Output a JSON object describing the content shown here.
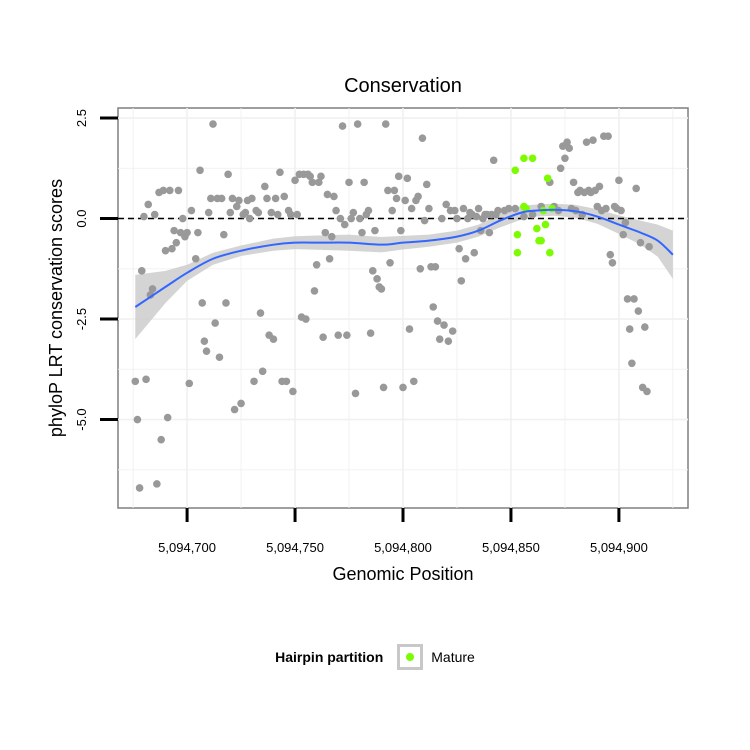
{
  "chart_data": {
    "type": "scatter",
    "title": "Conservation",
    "xlabel": "Genomic Position",
    "ylabel": "phyloP LRT conservation scores",
    "xlim": [
      5094668,
      5094932
    ],
    "ylim": [
      -7.2,
      2.75
    ],
    "x_ticks": [
      5094700,
      5094750,
      5094800,
      5094850,
      5094900
    ],
    "x_tick_labels": [
      "5,094,700",
      "5,094,750",
      "5,094,800",
      "5,094,850",
      "5,094,900"
    ],
    "y_ticks": [
      2.5,
      0.0,
      -2.5,
      -5.0
    ],
    "y_tick_labels": [
      "2.5",
      "0.0",
      "-2.5",
      "-5.0"
    ],
    "hline": {
      "y": 0,
      "style": "dashed"
    },
    "grid": true,
    "legend": {
      "title": "Hairpin partition",
      "position": "bottom",
      "entries": [
        {
          "label": "Mature",
          "color": "#7cfc00"
        }
      ]
    },
    "colors": {
      "points": "#999999",
      "highlight": "#7cfc00",
      "smooth": "#3366ff",
      "band": "#cccccc"
    },
    "smooth_x": [
      5094676,
      5094690,
      5094700,
      5094712,
      5094725,
      5094740,
      5094750,
      5094762,
      5094775,
      5094790,
      5094800,
      5094812,
      5094825,
      5094835,
      5094845,
      5094855,
      5094862,
      5094870,
      5094880,
      5094890,
      5094900,
      5094910,
      5094918,
      5094925
    ],
    "smooth_y": [
      -2.2,
      -1.7,
      -1.35,
      -1.0,
      -0.8,
      -0.65,
      -0.6,
      -0.6,
      -0.6,
      -0.65,
      -0.6,
      -0.55,
      -0.45,
      -0.3,
      -0.05,
      0.15,
      0.2,
      0.22,
      0.18,
      0.05,
      -0.15,
      -0.35,
      -0.55,
      -0.9
    ],
    "band_low": [
      -3.0,
      -2.1,
      -1.55,
      -1.15,
      -0.93,
      -0.8,
      -0.76,
      -0.78,
      -0.8,
      -0.84,
      -0.77,
      -0.7,
      -0.6,
      -0.45,
      -0.22,
      -0.02,
      0.05,
      0.07,
      0.02,
      -0.13,
      -0.38,
      -0.65,
      -0.95,
      -1.5
    ],
    "band_high": [
      -1.4,
      -1.3,
      -1.15,
      -0.85,
      -0.67,
      -0.5,
      -0.44,
      -0.42,
      -0.4,
      -0.46,
      -0.43,
      -0.4,
      -0.3,
      -0.15,
      0.12,
      0.32,
      0.35,
      0.37,
      0.34,
      0.23,
      0.08,
      -0.05,
      -0.15,
      -0.3
    ],
    "series": [
      {
        "values": [
          [
            5094676,
            -4.05
          ],
          [
            5094677,
            -5.0
          ],
          [
            5094678,
            -6.7
          ],
          [
            5094679,
            -1.3
          ],
          [
            5094680,
            0.05
          ],
          [
            5094681,
            -4.0
          ],
          [
            5094682,
            0.35
          ],
          [
            5094683,
            -1.9
          ],
          [
            5094684,
            -1.75
          ],
          [
            5094685,
            0.1
          ],
          [
            5094686,
            -6.6
          ],
          [
            5094687,
            0.65
          ],
          [
            5094688,
            -5.5
          ],
          [
            5094689,
            0.7
          ],
          [
            5094690,
            -0.8
          ],
          [
            5094691,
            -4.95
          ],
          [
            5094692,
            0.7
          ],
          [
            5094693,
            -0.75
          ],
          [
            5094694,
            -0.3
          ],
          [
            5094695,
            -0.6
          ],
          [
            5094696,
            0.7
          ],
          [
            5094697,
            -0.35
          ],
          [
            5094698,
            0.0
          ],
          [
            5094699,
            -0.45
          ],
          [
            5094700,
            -0.35
          ],
          [
            5094701,
            -4.1
          ],
          [
            5094702,
            0.2
          ],
          [
            5094704,
            -1.0
          ],
          [
            5094705,
            -0.35
          ],
          [
            5094706,
            1.2
          ],
          [
            5094707,
            -2.1
          ],
          [
            5094708,
            -3.05
          ],
          [
            5094709,
            -3.3
          ],
          [
            5094710,
            0.15
          ],
          [
            5094711,
            0.5
          ],
          [
            5094712,
            2.35
          ],
          [
            5094713,
            -2.6
          ],
          [
            5094714,
            0.5
          ],
          [
            5094715,
            -3.45
          ],
          [
            5094716,
            0.5
          ],
          [
            5094717,
            -0.4
          ],
          [
            5094718,
            -2.1
          ],
          [
            5094719,
            1.1
          ],
          [
            5094720,
            0.15
          ],
          [
            5094721,
            0.5
          ],
          [
            5094722,
            -4.75
          ],
          [
            5094723,
            0.3
          ],
          [
            5094724,
            0.45
          ],
          [
            5094725,
            -4.6
          ],
          [
            5094726,
            0.1
          ],
          [
            5094727,
            0.15
          ],
          [
            5094728,
            0.45
          ],
          [
            5094729,
            0.0
          ],
          [
            5094730,
            0.5
          ],
          [
            5094731,
            -4.05
          ],
          [
            5094732,
            0.2
          ],
          [
            5094733,
            0.15
          ],
          [
            5094734,
            -2.35
          ],
          [
            5094735,
            -3.8
          ],
          [
            5094736,
            0.8
          ],
          [
            5094737,
            0.5
          ],
          [
            5094738,
            -2.9
          ],
          [
            5094739,
            0.15
          ],
          [
            5094740,
            -3.0
          ],
          [
            5094741,
            0.5
          ],
          [
            5094742,
            0.1
          ],
          [
            5094743,
            1.15
          ],
          [
            5094744,
            -4.05
          ],
          [
            5094745,
            0.55
          ],
          [
            5094746,
            -4.05
          ],
          [
            5094747,
            0.2
          ],
          [
            5094748,
            0.1
          ],
          [
            5094749,
            -4.3
          ],
          [
            5094750,
            0.95
          ],
          [
            5094751,
            0.1
          ],
          [
            5094752,
            1.1
          ],
          [
            5094753,
            -2.45
          ],
          [
            5094754,
            1.1
          ],
          [
            5094755,
            -2.5
          ],
          [
            5094756,
            1.1
          ],
          [
            5094757,
            1.05
          ],
          [
            5094758,
            0.9
          ],
          [
            5094759,
            -1.8
          ],
          [
            5094760,
            -1.15
          ],
          [
            5094761,
            0.9
          ],
          [
            5094762,
            1.05
          ],
          [
            5094763,
            -2.95
          ],
          [
            5094764,
            -0.35
          ],
          [
            5094765,
            0.6
          ],
          [
            5094766,
            -1.0
          ],
          [
            5094767,
            -0.45
          ],
          [
            5094768,
            0.55
          ],
          [
            5094769,
            0.2
          ],
          [
            5094770,
            -2.9
          ],
          [
            5094771,
            0.0
          ],
          [
            5094772,
            2.3
          ],
          [
            5094773,
            -0.15
          ],
          [
            5094774,
            -2.9
          ],
          [
            5094775,
            0.9
          ],
          [
            5094776,
            0.0
          ],
          [
            5094777,
            0.15
          ],
          [
            5094778,
            -4.35
          ],
          [
            5094779,
            2.35
          ],
          [
            5094780,
            0.0
          ],
          [
            5094781,
            -0.35
          ],
          [
            5094782,
            0.9
          ],
          [
            5094783,
            0.1
          ],
          [
            5094784,
            0.2
          ],
          [
            5094785,
            -2.85
          ],
          [
            5094786,
            -1.3
          ],
          [
            5094787,
            -0.3
          ],
          [
            5094788,
            -1.5
          ],
          [
            5094789,
            -1.7
          ],
          [
            5094790,
            -1.75
          ],
          [
            5094791,
            -4.2
          ],
          [
            5094792,
            2.35
          ],
          [
            5094793,
            0.7
          ],
          [
            5094794,
            -1.1
          ],
          [
            5094795,
            0.2
          ],
          [
            5094796,
            0.7
          ],
          [
            5094797,
            0.5
          ],
          [
            5094798,
            1.05
          ],
          [
            5094799,
            -0.3
          ],
          [
            5094800,
            -4.2
          ],
          [
            5094801,
            0.45
          ],
          [
            5094802,
            1.0
          ],
          [
            5094803,
            -2.75
          ],
          [
            5094804,
            0.25
          ],
          [
            5094805,
            -4.05
          ],
          [
            5094806,
            0.45
          ],
          [
            5094807,
            0.55
          ],
          [
            5094808,
            -1.25
          ],
          [
            5094809,
            2.0
          ],
          [
            5094810,
            -0.05
          ],
          [
            5094811,
            0.85
          ],
          [
            5094812,
            0.25
          ],
          [
            5094813,
            -1.2
          ],
          [
            5094814,
            -2.2
          ],
          [
            5094815,
            -1.2
          ],
          [
            5094816,
            -2.55
          ],
          [
            5094817,
            -3.0
          ],
          [
            5094818,
            0.0
          ],
          [
            5094819,
            -2.65
          ],
          [
            5094820,
            0.35
          ],
          [
            5094821,
            -3.05
          ],
          [
            5094822,
            0.2
          ],
          [
            5094823,
            -2.8
          ],
          [
            5094824,
            0.2
          ],
          [
            5094825,
            0.0
          ],
          [
            5094826,
            -0.75
          ],
          [
            5094827,
            -1.55
          ],
          [
            5094828,
            0.25
          ],
          [
            5094829,
            -1.0
          ],
          [
            5094830,
            0.0
          ],
          [
            5094831,
            0.15
          ],
          [
            5094832,
            0.1
          ],
          [
            5094833,
            -0.85
          ],
          [
            5094834,
            0.05
          ],
          [
            5094835,
            0.25
          ],
          [
            5094836,
            -0.3
          ],
          [
            5094837,
            0.0
          ],
          [
            5094838,
            0.1
          ],
          [
            5094839,
            0.1
          ],
          [
            5094840,
            -0.35
          ],
          [
            5094841,
            0.1
          ],
          [
            5094842,
            1.45
          ],
          [
            5094843,
            0.1
          ],
          [
            5094844,
            0.2
          ],
          [
            5094847,
            0.2
          ],
          [
            5094849,
            0.25
          ],
          [
            5094852,
            0.25
          ],
          [
            5094856,
            0.05
          ],
          [
            5094860,
            0.1
          ],
          [
            5094864,
            0.3
          ],
          [
            5094868,
            0.9
          ],
          [
            5094870,
            0.3
          ],
          [
            5094872,
            0.2
          ],
          [
            5094873,
            1.25
          ],
          [
            5094874,
            1.8
          ],
          [
            5094875,
            1.5
          ],
          [
            5094876,
            1.9
          ],
          [
            5094877,
            1.75
          ],
          [
            5094878,
            0.25
          ],
          [
            5094879,
            0.9
          ],
          [
            5094880,
            0.2
          ],
          [
            5094881,
            0.65
          ],
          [
            5094882,
            0.7
          ],
          [
            5094883,
            0.1
          ],
          [
            5094884,
            0.65
          ],
          [
            5094885,
            1.9
          ],
          [
            5094886,
            0.7
          ],
          [
            5094887,
            0.65
          ],
          [
            5094888,
            1.95
          ],
          [
            5094889,
            0.7
          ],
          [
            5094890,
            0.3
          ],
          [
            5094891,
            0.8
          ],
          [
            5094892,
            0.2
          ],
          [
            5094893,
            2.05
          ],
          [
            5094894,
            0.25
          ],
          [
            5094895,
            2.05
          ],
          [
            5094896,
            -0.9
          ],
          [
            5094897,
            -1.1
          ],
          [
            5094898,
            0.3
          ],
          [
            5094899,
            0.25
          ],
          [
            5094900,
            0.95
          ],
          [
            5094901,
            0.2
          ],
          [
            5094902,
            -0.4
          ],
          [
            5094903,
            -0.1
          ],
          [
            5094904,
            -2.0
          ],
          [
            5094905,
            -2.75
          ],
          [
            5094906,
            -3.6
          ],
          [
            5094907,
            -2.0
          ],
          [
            5094908,
            0.75
          ],
          [
            5094909,
            -2.3
          ],
          [
            5094910,
            -0.6
          ],
          [
            5094911,
            -4.2
          ],
          [
            5094912,
            -2.7
          ],
          [
            5094913,
            -4.3
          ],
          [
            5094914,
            -0.7
          ]
        ]
      },
      {
        "name": "Mature",
        "values": [
          [
            5094852,
            1.2
          ],
          [
            5094853,
            -0.4
          ],
          [
            5094853,
            -0.85
          ],
          [
            5094856,
            1.5
          ],
          [
            5094856,
            0.3
          ],
          [
            5094857,
            0.25
          ],
          [
            5094860,
            1.5
          ],
          [
            5094862,
            -0.25
          ],
          [
            5094863,
            -0.55
          ],
          [
            5094864,
            -0.55
          ],
          [
            5094865,
            0.2
          ],
          [
            5094866,
            -0.15
          ],
          [
            5094867,
            1.0
          ],
          [
            5094868,
            -0.85
          ],
          [
            5094869,
            0.25
          ]
        ]
      }
    ]
  }
}
